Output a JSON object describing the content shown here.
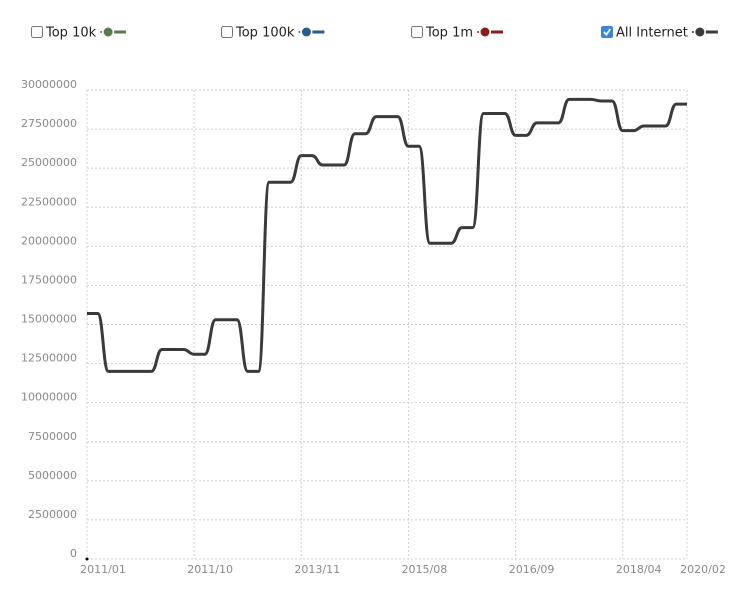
{
  "chart_data": {
    "type": "line",
    "series": [
      {
        "name": "Top 10k",
        "color": "#5b7a52",
        "checked": false
      },
      {
        "name": "Top 100k",
        "color": "#2b5c8c",
        "checked": false
      },
      {
        "name": "Top 1m",
        "color": "#8e1b1b",
        "checked": false
      },
      {
        "name": "All Internet",
        "color": "#3a3a3a",
        "checked": true,
        "values": [
          15700000,
          15700000,
          12000000,
          12000000,
          12000000,
          12000000,
          12000000,
          13400000,
          13400000,
          13400000,
          13100000,
          13100000,
          15300000,
          15300000,
          15300000,
          12000000,
          12000000,
          24100000,
          24100000,
          24100000,
          25800000,
          25800000,
          25200000,
          25200000,
          25200000,
          27200000,
          27200000,
          28300000,
          28300000,
          28300000,
          26400000,
          26400000,
          20200000,
          20200000,
          20200000,
          21200000,
          21200000,
          28500000,
          28500000,
          28500000,
          27100000,
          27100000,
          27900000,
          27900000,
          27900000,
          29400000,
          29400000,
          29400000,
          29300000,
          29300000,
          27400000,
          27400000,
          27700000,
          27700000,
          27700000,
          29100000,
          29100000
        ]
      }
    ],
    "categories": [
      "2011/01",
      null,
      null,
      null,
      null,
      null,
      null,
      null,
      null,
      null,
      "2011/10",
      null,
      null,
      null,
      null,
      null,
      null,
      null,
      null,
      null,
      "2013/11",
      null,
      null,
      null,
      null,
      null,
      null,
      null,
      null,
      null,
      "2015/08",
      null,
      null,
      null,
      null,
      null,
      null,
      null,
      null,
      null,
      "2016/09",
      null,
      null,
      null,
      null,
      null,
      null,
      null,
      null,
      null,
      "2018/04",
      null,
      null,
      null,
      null,
      null,
      "2020/02"
    ],
    "ylim": [
      0,
      30000000
    ],
    "yticks": [
      0,
      2500000,
      5000000,
      7500000,
      10000000,
      12500000,
      15000000,
      17500000,
      20000000,
      22500000,
      25000000,
      27500000,
      30000000
    ],
    "grid": true
  }
}
